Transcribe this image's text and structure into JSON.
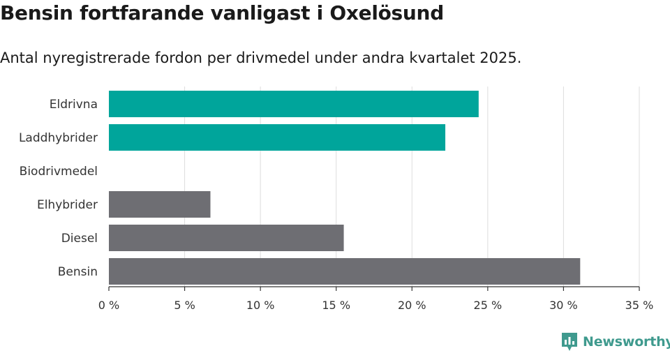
{
  "header": {
    "title": "Bensin fortfarande vanligast i Oxelösund",
    "subtitle": "Antal nyregistrerade fordon per drivmedel under andra kvartalet 2025."
  },
  "brand": {
    "name": "Newsworthy",
    "icon": "newsworthy-logo-icon"
  },
  "colors": {
    "highlight": "#00a59b",
    "default": "#6e6e73",
    "grid": "#dddddd",
    "axis": "#333333"
  },
  "chart_data": {
    "type": "bar",
    "orientation": "horizontal",
    "categories": [
      "Eldrivna",
      "Laddhybrider",
      "Biodrivmedel",
      "Elhybrider",
      "Diesel",
      "Bensin"
    ],
    "values": [
      24.4,
      22.2,
      0,
      6.7,
      15.5,
      31.1
    ],
    "highlighted": [
      "Eldrivna",
      "Laddhybrider"
    ],
    "xlim": [
      0,
      35
    ],
    "xticks": [
      0,
      5,
      10,
      15,
      20,
      25,
      30,
      35
    ],
    "xtick_labels": [
      "0 %",
      "5 %",
      "10 %",
      "15 %",
      "20 %",
      "25 %",
      "30 %",
      "35 %"
    ],
    "grid": true,
    "xlabel": "",
    "ylabel": ""
  }
}
